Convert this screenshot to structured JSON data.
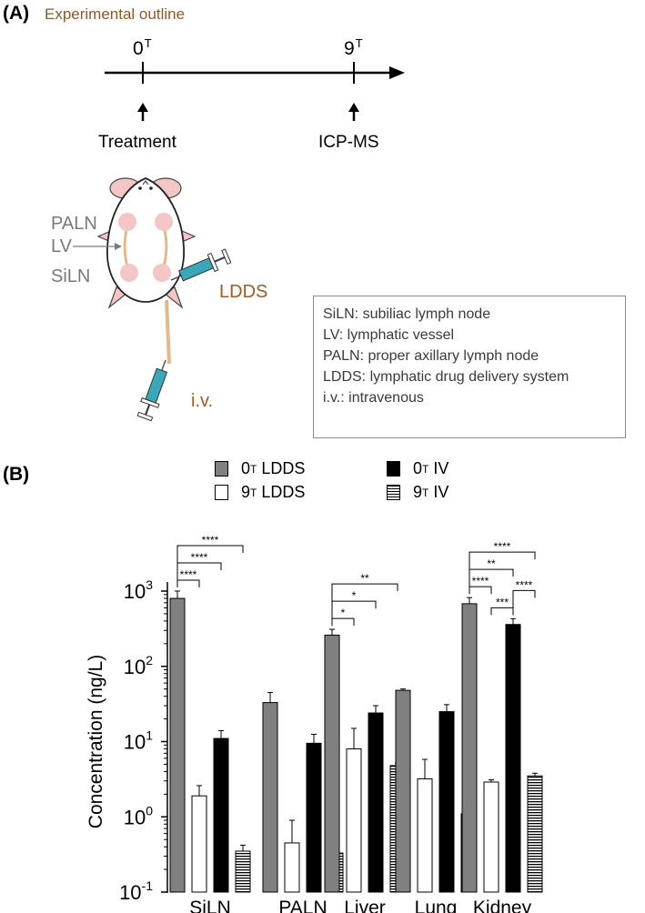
{
  "panel_a": {
    "label": "(A)",
    "subtitle": "Experimental outline",
    "timeline": {
      "start": {
        "value": "0",
        "sup": "T",
        "event": "Treatment"
      },
      "end": {
        "value": "9",
        "sup": "T",
        "event": "ICP-MS"
      }
    },
    "mouse_labels": {
      "paln": "PALN",
      "lv": "LV",
      "siln": "SiLN",
      "ldds": "LDDS",
      "iv": "i.v."
    },
    "abbreviations": [
      "SiLN: subiliac lymph node",
      "LV: lymphatic vessel",
      "PALN: proper axillary lymph node",
      "LDDS: lymphatic drug delivery system",
      "i.v.: intravenous"
    ],
    "colors": {
      "subtitle": "#8a5a2b",
      "route": "#a05a22",
      "syringe": "#3aa6b9",
      "node": "#f4c6c6",
      "vessel": "#e3b88c"
    }
  },
  "panel_b": {
    "label": "(B)",
    "legend": [
      {
        "base": "0",
        "sup": "T",
        "label": "LDDS",
        "swatch": "gray"
      },
      {
        "base": "9",
        "sup": "T",
        "label": "LDDS",
        "swatch": "white"
      },
      {
        "base": "0",
        "sup": "T",
        "label": "IV",
        "swatch": "black"
      },
      {
        "base": "9",
        "sup": "T",
        "label": "IV",
        "swatch": "stripe"
      }
    ]
  },
  "chart_data": {
    "type": "bar",
    "ylabel": "Concentration (ng/L)",
    "yscale": "log",
    "ylim": [
      0.1,
      1000
    ],
    "yticks": [
      {
        "base": "10",
        "exp": "3",
        "value": 1000
      },
      {
        "base": "10",
        "exp": "2",
        "value": 100
      },
      {
        "base": "10",
        "exp": "1",
        "value": 10
      },
      {
        "base": "10",
        "exp": "0",
        "value": 1
      },
      {
        "base": "10",
        "exp": "-1",
        "value": 0.1
      }
    ],
    "categories": [
      "SiLN",
      "PALN",
      "Liver",
      "Lung",
      "Kidney"
    ],
    "series": [
      {
        "name": "0T LDDS",
        "style": "gray",
        "values": [
          800,
          33,
          260,
          48,
          680
        ],
        "errors": [
          1000,
          45,
          310,
          50,
          820
        ]
      },
      {
        "name": "9T LDDS",
        "style": "white",
        "values": [
          1.9,
          0.45,
          8,
          3.2,
          2.9
        ],
        "errors": [
          2.6,
          0.9,
          15,
          5.8,
          3.1
        ]
      },
      {
        "name": "0T IV",
        "style": "black",
        "values": [
          11,
          9.5,
          24,
          25,
          360
        ],
        "errors": [
          14,
          12.5,
          30,
          31,
          430
        ]
      },
      {
        "name": "9T IV",
        "style": "stripe",
        "values": [
          0.35,
          0.33,
          4.8,
          1.1,
          3.5
        ],
        "errors": [
          0.42,
          0.36,
          5.2,
          1.25,
          3.8
        ]
      }
    ],
    "significance": [
      {
        "category": "SiLN",
        "from_series": 0,
        "to_series": 1,
        "label": "****"
      },
      {
        "category": "SiLN",
        "from_series": 0,
        "to_series": 2,
        "label": "****"
      },
      {
        "category": "SiLN",
        "from_series": 0,
        "to_series": 3,
        "label": "****"
      },
      {
        "category": "Liver",
        "from_series": 0,
        "to_series": 1,
        "label": "*"
      },
      {
        "category": "Liver",
        "from_series": 0,
        "to_series": 2,
        "label": "*"
      },
      {
        "category": "Liver",
        "from_series": 0,
        "to_series": 3,
        "label": "**"
      },
      {
        "category": "Kidney",
        "from_series": 0,
        "to_series": 1,
        "label": "****"
      },
      {
        "category": "Kidney",
        "from_series": 0,
        "to_series": 2,
        "label": "**"
      },
      {
        "category": "Kidney",
        "from_series": 0,
        "to_series": 3,
        "label": "****"
      },
      {
        "category": "Kidney",
        "from_series": 2,
        "to_series": 1,
        "label": "***"
      },
      {
        "category": "Kidney",
        "from_series": 2,
        "to_series": 3,
        "label": "****"
      }
    ]
  }
}
